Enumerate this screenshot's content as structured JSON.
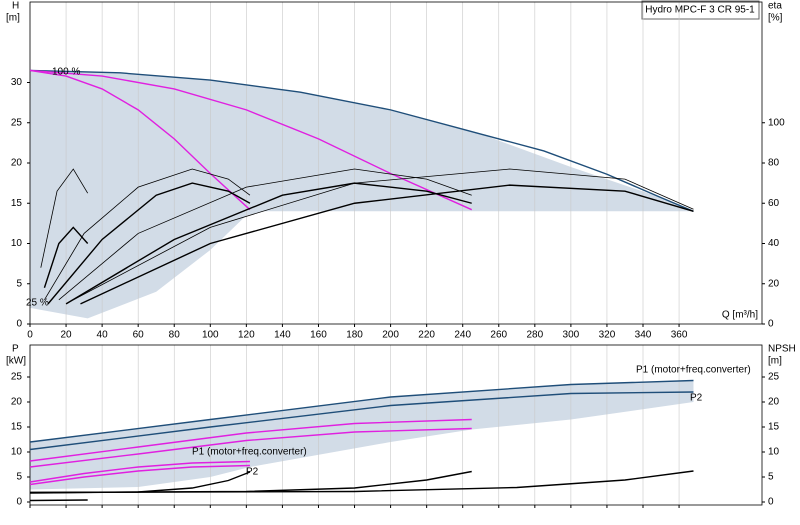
{
  "chart_data": [
    {
      "type": "line",
      "title": "Hydro MPC-F 3 CR 95-1",
      "xlabel": "Q [m³/h]",
      "ylabel": [
        "H",
        "[m]"
      ],
      "y2label": [
        "eta",
        "[%]"
      ],
      "xlim": [
        0,
        406
      ],
      "ylim": [
        0,
        40
      ],
      "y2lim": [
        0,
        160
      ],
      "xticks": [
        0,
        20,
        40,
        60,
        80,
        100,
        120,
        140,
        160,
        180,
        200,
        220,
        240,
        260,
        280,
        300,
        320,
        340,
        360
      ],
      "yticks": [
        0,
        5,
        10,
        15,
        20,
        25,
        30
      ],
      "y2ticks": [
        0,
        20,
        40,
        60,
        80,
        100
      ],
      "grid": true,
      "annotations": [
        "100 %",
        "25 %"
      ],
      "region": {
        "color": "#d2dce7",
        "x": [
          0,
          50,
          100,
          150,
          200,
          250,
          300,
          350,
          368,
          368,
          240,
          130,
          120,
          100,
          70,
          32,
          0
        ],
        "values": [
          31.5,
          31.2,
          30.3,
          28.8,
          26.6,
          23.6,
          19.5,
          15.7,
          14,
          14,
          14,
          14,
          13.5,
          9.2,
          4,
          0.7,
          2
        ]
      },
      "series": [
        {
          "color": "#1f4e79",
          "x": [
            0,
            50,
            100,
            150,
            200,
            250,
            285,
            320,
            350,
            368
          ],
          "values": [
            31.5,
            31.2,
            30.3,
            28.8,
            26.6,
            23.6,
            21.5,
            18.6,
            15.7,
            14
          ]
        },
        {
          "color": "#e020e0",
          "x": [
            0,
            20,
            40,
            60,
            80,
            100,
            122
          ],
          "values": [
            31.5,
            30.8,
            29.2,
            26.6,
            23,
            18.7,
            14.2
          ]
        },
        {
          "color": "#e020e0",
          "x": [
            0,
            40,
            80,
            120,
            160,
            200,
            245
          ],
          "values": [
            31.5,
            30.8,
            29.2,
            26.6,
            23,
            18.7,
            14.2
          ]
        },
        {
          "color": "#000000",
          "axis": "y2",
          "x": [
            8,
            30,
            60,
            90,
            110,
            122
          ],
          "values": [
            12,
            45,
            68,
            77,
            72,
            64
          ]
        },
        {
          "color": "#000000",
          "axis": "y2",
          "x": [
            10,
            40,
            70,
            90,
            110,
            122
          ],
          "values": [
            10,
            42,
            64,
            70,
            66,
            60
          ]
        },
        {
          "color": "#000000",
          "axis": "y2",
          "x": [
            6,
            15,
            24,
            32
          ],
          "values": [
            28,
            66,
            77,
            65
          ]
        },
        {
          "color": "#000000",
          "axis": "y2",
          "x": [
            8,
            16,
            24,
            32
          ],
          "values": [
            18,
            40,
            48,
            40
          ]
        },
        {
          "color": "#000000",
          "axis": "y2",
          "x": [
            16,
            60,
            120,
            180,
            220,
            245
          ],
          "values": [
            12,
            45,
            68,
            77,
            72,
            64
          ]
        },
        {
          "color": "#000000",
          "axis": "y2",
          "x": [
            20,
            80,
            140,
            180,
            220,
            245
          ],
          "values": [
            10,
            42,
            64,
            70,
            66,
            60
          ]
        },
        {
          "color": "#000000",
          "axis": "y2",
          "x": [
            24,
            100,
            180,
            266,
            330,
            368
          ],
          "values": [
            12,
            48,
            70,
            77,
            72,
            57
          ]
        },
        {
          "color": "#000000",
          "axis": "y2",
          "x": [
            28,
            100,
            180,
            266,
            330,
            368
          ],
          "values": [
            10,
            40,
            60,
            69,
            66,
            56
          ]
        }
      ]
    },
    {
      "type": "line",
      "ylabel": [
        "P",
        "[kW]"
      ],
      "y2label": [
        "NPSH",
        "[m]"
      ],
      "xlim": [
        0,
        406
      ],
      "ylim": [
        -0.6,
        31.4
      ],
      "y2lim": [
        -0.6,
        31.4
      ],
      "yticks": [
        0,
        5,
        10,
        15,
        20,
        25
      ],
      "y2ticks": [
        0,
        5,
        10,
        15,
        20,
        25
      ],
      "annotations": [
        "P1 (motor+freq.converter)",
        "P2",
        "P1 (motor+freq.converter)",
        "P2"
      ],
      "region": {
        "color": "#d2dce7",
        "x": [
          0,
          100,
          200,
          300,
          368,
          368,
          300,
          245,
          200,
          122,
          100,
          60,
          0
        ],
        "values": [
          12,
          16.5,
          21,
          23.5,
          24.3,
          20,
          16.5,
          14.5,
          12,
          7,
          5,
          3,
          2.5
        ]
      },
      "series": [
        {
          "color": "#1f4e79",
          "x": [
            0,
            100,
            200,
            300,
            368
          ],
          "values": [
            12,
            16.5,
            21,
            23.5,
            24.3
          ]
        },
        {
          "color": "#1f4e79",
          "x": [
            0,
            100,
            200,
            300,
            368
          ],
          "values": [
            10.5,
            15,
            19.3,
            21.7,
            22
          ]
        },
        {
          "color": "#e020e0",
          "x": [
            0,
            60,
            120,
            180,
            245
          ],
          "values": [
            8.2,
            11,
            13.8,
            15.7,
            16.5
          ]
        },
        {
          "color": "#e020e0",
          "x": [
            0,
            60,
            120,
            180,
            245
          ],
          "values": [
            7,
            9.6,
            12.3,
            14,
            14.7
          ]
        },
        {
          "color": "#e020e0",
          "x": [
            0,
            30,
            60,
            90,
            122
          ],
          "values": [
            4,
            5.7,
            7,
            7.8,
            8.1
          ]
        },
        {
          "color": "#e020e0",
          "x": [
            0,
            30,
            60,
            90,
            122
          ],
          "values": [
            3.5,
            5,
            6.2,
            7,
            7.3
          ]
        },
        {
          "color": "#000000",
          "axis": "y2",
          "x": [
            0,
            60,
            90,
            110,
            122
          ],
          "values": [
            1.8,
            2,
            2.8,
            4.3,
            6
          ]
        },
        {
          "color": "#000000",
          "axis": "y2",
          "x": [
            0,
            120,
            180,
            220,
            245
          ],
          "values": [
            1.9,
            2.1,
            2.8,
            4.4,
            6.1
          ]
        },
        {
          "color": "#000000",
          "axis": "y2",
          "x": [
            0,
            180,
            270,
            330,
            368
          ],
          "values": [
            1.9,
            2.1,
            2.9,
            4.4,
            6.2
          ]
        },
        {
          "color": "#000000",
          "axis": "y2",
          "x": [
            0,
            32
          ],
          "values": [
            0.3,
            0.4
          ]
        }
      ]
    }
  ]
}
